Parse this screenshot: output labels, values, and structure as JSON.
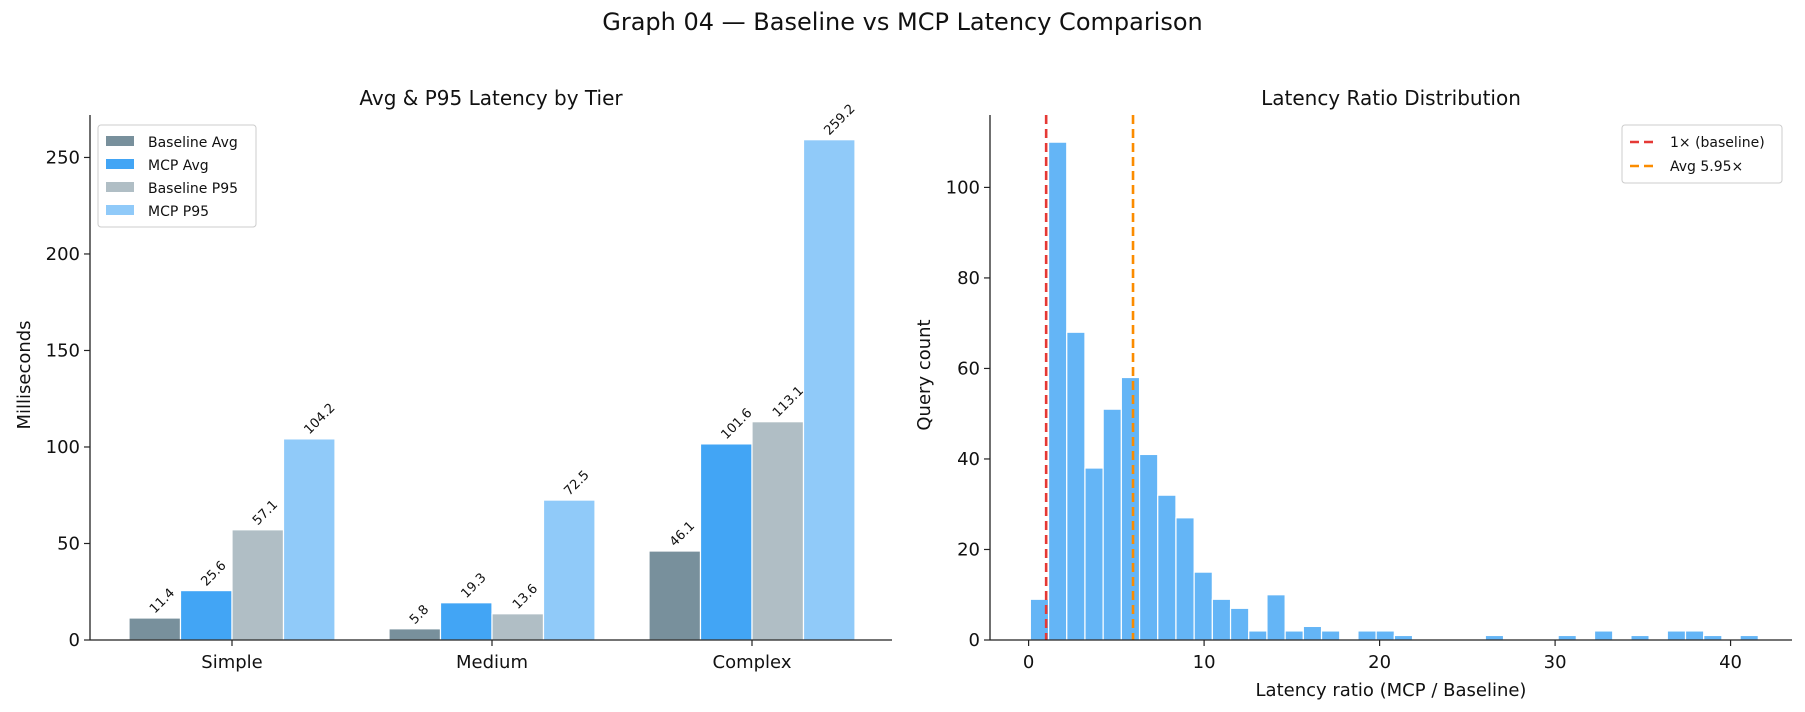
{
  "figure_title": "Graph 04 — Baseline vs MCP Latency Comparison",
  "chart_data": [
    {
      "type": "bar",
      "title": "Avg & P95 Latency by Tier",
      "xlabel": "",
      "ylabel": "Milliseconds",
      "categories": [
        "Simple",
        "Medium",
        "Complex"
      ],
      "ylim": [
        0,
        272
      ],
      "yticks": [
        0,
        50,
        100,
        150,
        200,
        250
      ],
      "series": [
        {
          "name": "Baseline Avg",
          "color": "#78909c",
          "values": [
            11.4,
            5.8,
            46.1
          ],
          "labels": [
            "11.4",
            "5.8",
            "46.1"
          ]
        },
        {
          "name": "MCP Avg",
          "color": "#42a5f5",
          "values": [
            25.6,
            19.3,
            101.6
          ],
          "labels": [
            "25.6",
            "19.3",
            "101.6"
          ]
        },
        {
          "name": "Baseline P95",
          "color": "#b0bec5",
          "values": [
            57.1,
            13.6,
            113.1
          ],
          "labels": [
            "57.1",
            "13.6",
            "113.1"
          ]
        },
        {
          "name": "MCP P95",
          "color": "#90caf9",
          "values": [
            104.2,
            72.5,
            259.2
          ],
          "labels": [
            "104.2",
            "72.5",
            "259.2"
          ]
        }
      ],
      "legend_position": "upper-left",
      "grid": false
    },
    {
      "type": "histogram",
      "title": "Latency Ratio Distribution",
      "xlabel": "Latency ratio (MCP / Baseline)",
      "ylabel": "Query count",
      "xlim": [
        -2.2,
        43.5
      ],
      "ylim": [
        0,
        116
      ],
      "xticks": [
        0,
        10,
        20,
        30,
        40
      ],
      "yticks": [
        0,
        20,
        40,
        60,
        80,
        100
      ],
      "bin_start": 0.1,
      "bin_width": 1.037,
      "bar_color": "#64b5f6",
      "counts": [
        9,
        110,
        68,
        38,
        51,
        58,
        41,
        32,
        27,
        15,
        9,
        7,
        2,
        10,
        2,
        3,
        2,
        0,
        2,
        2,
        1,
        0,
        0,
        0,
        0,
        1,
        0,
        0,
        0,
        1,
        0,
        2,
        0,
        1,
        0,
        2,
        2,
        1,
        0,
        1
      ],
      "reference_lines": [
        {
          "label": "1× (baseline)",
          "x": 1.0,
          "color": "#e53935"
        },
        {
          "label": "Avg 5.95×",
          "x": 5.95,
          "color": "#fb8c00"
        }
      ],
      "legend_position": "upper-right",
      "grid": false
    }
  ]
}
